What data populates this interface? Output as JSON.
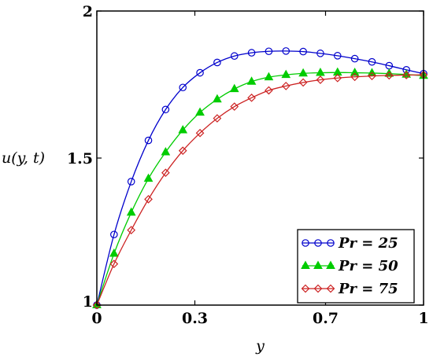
{
  "chart_data": {
    "type": "line",
    "title": "",
    "xlabel": "y",
    "ylabel": "u(y, t)",
    "xlim": [
      0,
      1
    ],
    "ylim": [
      1,
      2
    ],
    "grid": false,
    "legend_position": "bottom-right",
    "x_ticks": [
      {
        "value": 0,
        "label": "0"
      },
      {
        "value": 0.3,
        "label": "0.3"
      },
      {
        "value": 0.7,
        "label": "0.7"
      },
      {
        "value": 1,
        "label": "1"
      }
    ],
    "y_ticks": [
      {
        "value": 1,
        "label": "1"
      },
      {
        "value": 1.5,
        "label": "1.5"
      },
      {
        "value": 2,
        "label": "2"
      }
    ],
    "x": [
      0,
      0.0526,
      0.1053,
      0.1579,
      0.2105,
      0.2632,
      0.3158,
      0.3684,
      0.4211,
      0.4737,
      0.5263,
      0.5789,
      0.6316,
      0.6842,
      0.7368,
      0.7895,
      0.8421,
      0.8947,
      0.9474,
      1.0
    ],
    "series": [
      {
        "name": "Pr = 25",
        "color": "#0000cc",
        "marker": "circle",
        "values": [
          1.0,
          1.24,
          1.42,
          1.56,
          1.665,
          1.74,
          1.79,
          1.825,
          1.847,
          1.858,
          1.863,
          1.864,
          1.862,
          1.856,
          1.848,
          1.838,
          1.827,
          1.814,
          1.8,
          1.787
        ]
      },
      {
        "name": "Pr = 50",
        "color": "#00cc00",
        "marker": "triangle",
        "values": [
          1.0,
          1.175,
          1.315,
          1.43,
          1.52,
          1.595,
          1.655,
          1.7,
          1.735,
          1.76,
          1.775,
          1.783,
          1.788,
          1.79,
          1.791,
          1.79,
          1.789,
          1.787,
          1.784,
          1.78
        ]
      },
      {
        "name": "Pr = 75",
        "color": "#cc2222",
        "marker": "diamond",
        "values": [
          1.0,
          1.14,
          1.255,
          1.36,
          1.45,
          1.525,
          1.585,
          1.635,
          1.675,
          1.705,
          1.73,
          1.745,
          1.757,
          1.766,
          1.772,
          1.776,
          1.779,
          1.781,
          1.782,
          1.783
        ]
      }
    ]
  }
}
